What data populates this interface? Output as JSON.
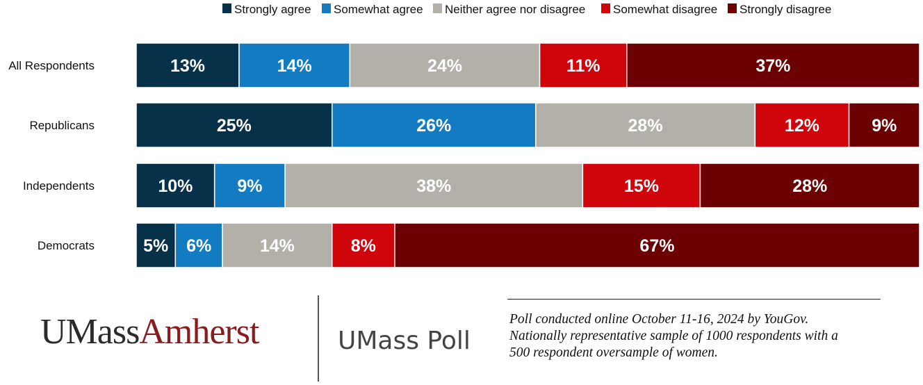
{
  "chart_data": {
    "type": "bar",
    "orientation": "horizontal",
    "stacked": true,
    "legend_position": "top",
    "categories": [
      "All Respondents",
      "Republicans",
      "Independents",
      "Democrats"
    ],
    "series": [
      {
        "name": "Strongly agree",
        "color": "#073049",
        "values": [
          13,
          25,
          10,
          5
        ]
      },
      {
        "name": "Somewhat agree",
        "color": "#137bc1",
        "values": [
          14,
          26,
          9,
          6
        ]
      },
      {
        "name": "Neither agree nor disagree",
        "color": "#b2b0a9",
        "values": [
          24,
          28,
          38,
          14
        ]
      },
      {
        "name": "Somewhat disagree",
        "color": "#d0040b",
        "values": [
          11,
          12,
          15,
          8
        ]
      },
      {
        "name": "Strongly disagree",
        "color": "#6b0102",
        "values": [
          37,
          9,
          28,
          67
        ]
      }
    ],
    "label_suffix": "%"
  },
  "branding": {
    "logo_part1": "UMass",
    "logo_part2": "Amherst",
    "poll_name": "UMass Poll"
  },
  "footnote": {
    "line1": "Poll conducted online October 11-16, 2024 by YouGov.",
    "line2": "Nationally representative sample of 1000 respondents with a",
    "line3": "500 respondent oversample of women."
  }
}
